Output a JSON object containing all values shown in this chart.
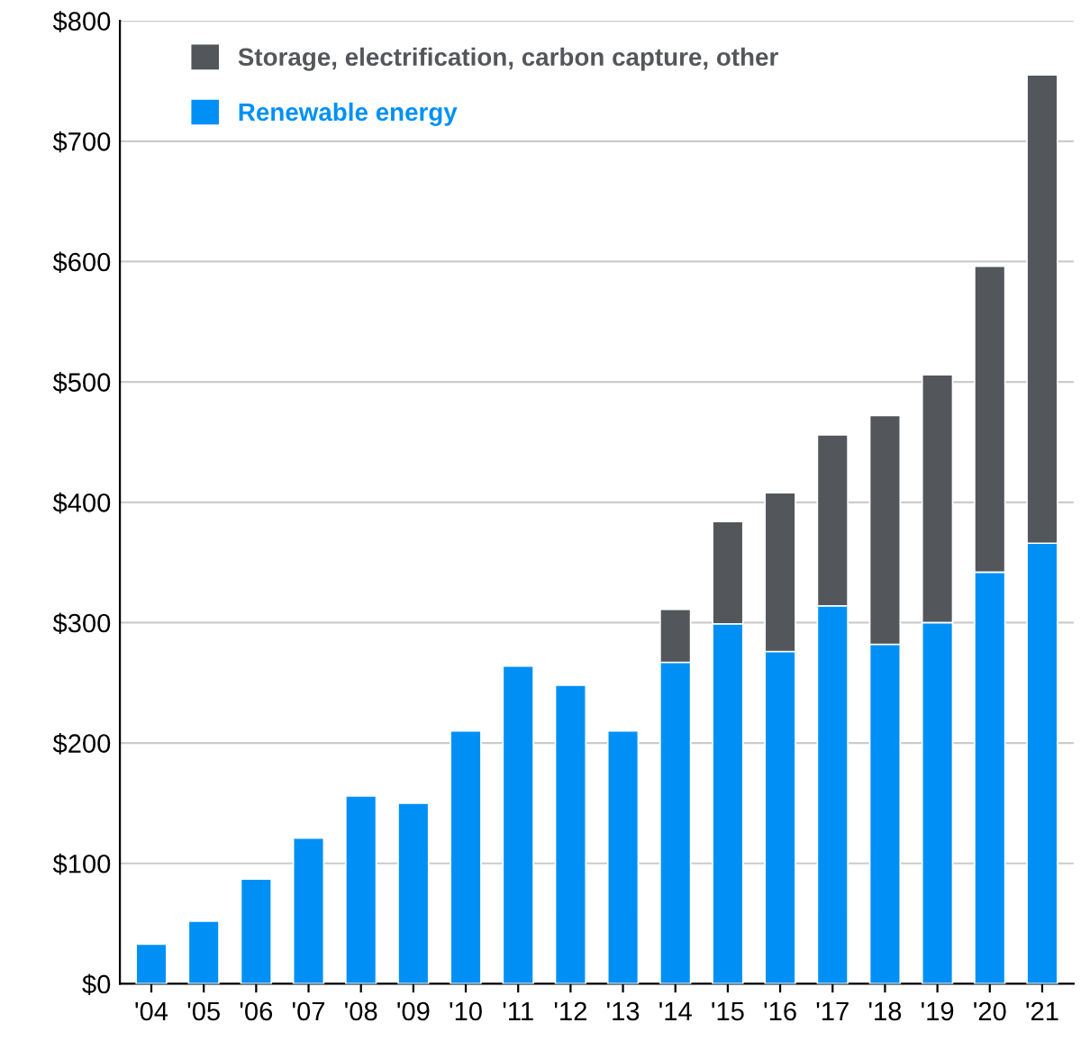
{
  "chart_data": {
    "type": "bar",
    "stacked": true,
    "categories": [
      "'04",
      "'05",
      "'06",
      "'07",
      "'08",
      "'09",
      "'10",
      "'11",
      "'12",
      "'13",
      "'14",
      "'15",
      "'16",
      "'17",
      "'18",
      "'19",
      "'20",
      "'21"
    ],
    "series": [
      {
        "name": "Renewable energy",
        "color": "#0090f5",
        "values": [
          33,
          52,
          87,
          121,
          156,
          150,
          210,
          264,
          248,
          210,
          267,
          299,
          276,
          314,
          282,
          300,
          342,
          366
        ]
      },
      {
        "name": "Storage, electrification, carbon capture, other",
        "color": "#53565a",
        "values": [
          null,
          null,
          null,
          null,
          null,
          null,
          null,
          null,
          null,
          null,
          44,
          85,
          132,
          142,
          190,
          206,
          254,
          389
        ]
      }
    ],
    "ylim": [
      0,
      800
    ],
    "yticks": [
      {
        "value": 0,
        "label": "$0"
      },
      {
        "value": 100,
        "label": "$100"
      },
      {
        "value": 200,
        "label": "$200"
      },
      {
        "value": 300,
        "label": "$300"
      },
      {
        "value": 400,
        "label": "$400"
      },
      {
        "value": 500,
        "label": "$500"
      },
      {
        "value": 600,
        "label": "$600"
      },
      {
        "value": 700,
        "label": "$700"
      },
      {
        "value": 800,
        "label": "$800"
      }
    ],
    "grid": "y",
    "legend": "top left"
  }
}
